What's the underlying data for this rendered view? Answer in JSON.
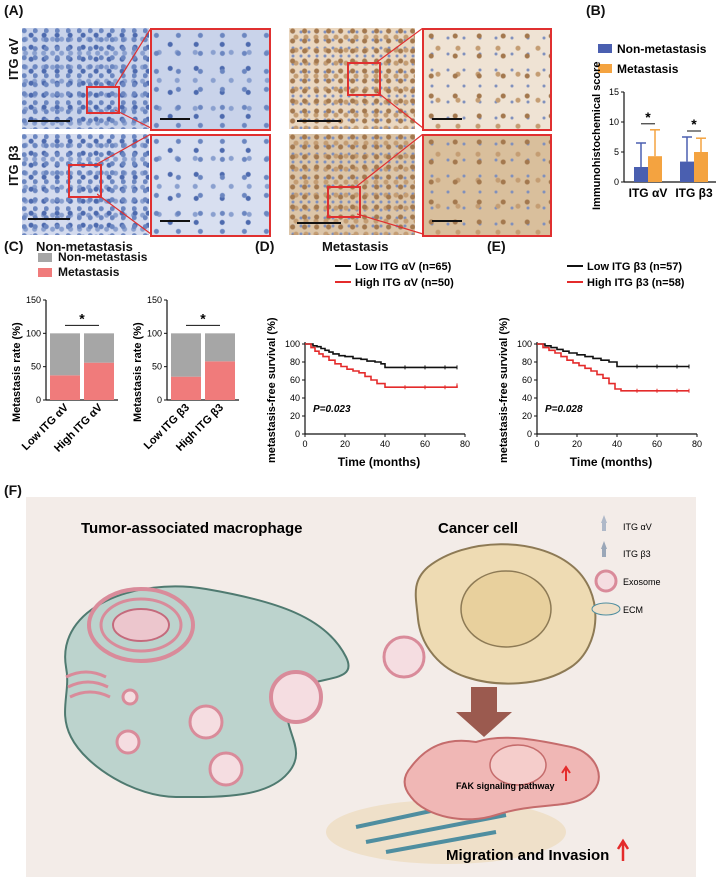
{
  "panels": {
    "a": "(A)",
    "b": "(B)",
    "c": "(C)",
    "d": "(D)",
    "e": "(E)",
    "f": "(F)"
  },
  "ihc": {
    "row_labels": [
      "ITG αV",
      "ITG β3"
    ],
    "col_labels": [
      "Non-metastasis",
      "Metastasis"
    ]
  },
  "colors": {
    "blue": "#4a5fb0",
    "orange": "#f4a340",
    "grey": "#a6a6a6",
    "pink": "#f07b7b",
    "black": "#111111",
    "red": "#e42b2b"
  },
  "chart_data": [
    {
      "id": "B",
      "type": "bar",
      "ylabel": "Immunohistochemical score",
      "categories": [
        "ITG αV",
        "ITG β3"
      ],
      "series": [
        {
          "name": "Non-metastasis",
          "values": [
            2.5,
            3.4
          ],
          "errors": [
            4.0,
            4.1
          ]
        },
        {
          "name": "Metastasis",
          "values": [
            4.3,
            5.0
          ],
          "errors": [
            4.4,
            2.3
          ]
        }
      ],
      "ylim": [
        0,
        15
      ],
      "yticks": [
        "0",
        "5",
        "10",
        "15"
      ],
      "significance": [
        "*",
        "*"
      ]
    },
    {
      "id": "C1",
      "type": "bar",
      "stacked": true,
      "ylabel": "Metastasis rate (%)",
      "legend": [
        "Non-metastasis",
        "Metastasis"
      ],
      "categories": [
        "Low ITG αV",
        "High ITG αV"
      ],
      "series": [
        {
          "name": "Metastasis",
          "values": [
            37,
            56
          ]
        },
        {
          "name": "Non-metastasis",
          "values": [
            63,
            44
          ]
        }
      ],
      "ylim": [
        0,
        150
      ],
      "yticks": [
        "0",
        "50",
        "100",
        "150"
      ],
      "significance": "*"
    },
    {
      "id": "C2",
      "type": "bar",
      "stacked": true,
      "ylabel": "Metastasis rate (%)",
      "categories": [
        "Low ITG β3",
        "High ITG β3"
      ],
      "series": [
        {
          "name": "Metastasis",
          "values": [
            35,
            58
          ]
        },
        {
          "name": "Non-metastasis",
          "values": [
            65,
            42
          ]
        }
      ],
      "ylim": [
        0,
        150
      ],
      "yticks": [
        "0",
        "50",
        "100",
        "150"
      ],
      "significance": "*"
    },
    {
      "id": "D",
      "type": "line",
      "xlabel": "Time (months)",
      "ylabel": "metastasis-free survival (%)",
      "xlim": [
        0,
        80
      ],
      "ylim": [
        0,
        100
      ],
      "xticks": [
        "0",
        "20",
        "40",
        "60",
        "80"
      ],
      "yticks": [
        "0",
        "20",
        "40",
        "60",
        "80",
        "100"
      ],
      "pvalue": "P=0.023",
      "series": [
        {
          "name": "Low   ITG αV (n=65)",
          "color": "#111111",
          "x": [
            0,
            4,
            6,
            8,
            10,
            12,
            14,
            17,
            20,
            24,
            28,
            31,
            35,
            38,
            40,
            50,
            60,
            70,
            76
          ],
          "y": [
            100,
            98,
            97,
            95,
            93,
            91,
            89,
            87,
            86,
            84,
            83,
            81,
            80,
            78,
            74,
            74,
            74,
            74,
            74
          ]
        },
        {
          "name": "High  ITG αV (n=50)",
          "color": "#e42b2b",
          "x": [
            0,
            3,
            5,
            7,
            9,
            12,
            15,
            18,
            21,
            24,
            27,
            30,
            33,
            36,
            40,
            50,
            60,
            70,
            76
          ],
          "y": [
            100,
            96,
            92,
            89,
            86,
            82,
            78,
            75,
            72,
            70,
            68,
            64,
            60,
            56,
            52,
            52,
            52,
            52,
            54
          ]
        }
      ]
    },
    {
      "id": "E",
      "type": "line",
      "xlabel": "Time (months)",
      "ylabel": "metastasis-free survival (%)",
      "xlim": [
        0,
        80
      ],
      "ylim": [
        0,
        100
      ],
      "xticks": [
        "0",
        "20",
        "40",
        "60",
        "80"
      ],
      "yticks": [
        "0",
        "20",
        "40",
        "60",
        "80",
        "100"
      ],
      "pvalue": "P=0.028",
      "series": [
        {
          "name": "Low   ITG β3 (n=57)",
          "color": "#111111",
          "x": [
            0,
            4,
            7,
            10,
            13,
            16,
            20,
            24,
            28,
            32,
            36,
            40,
            50,
            60,
            70,
            76
          ],
          "y": [
            100,
            98,
            96,
            94,
            92,
            90,
            88,
            86,
            84,
            82,
            80,
            75,
            75,
            75,
            75,
            75
          ]
        },
        {
          "name": "High  ITG β3 (n=58)",
          "color": "#e42b2b",
          "x": [
            0,
            3,
            6,
            9,
            12,
            15,
            18,
            21,
            24,
            27,
            30,
            33,
            36,
            39,
            42,
            50,
            60,
            70,
            76
          ],
          "y": [
            100,
            96,
            93,
            90,
            86,
            82,
            79,
            76,
            73,
            70,
            66,
            62,
            56,
            50,
            48,
            48,
            48,
            48,
            48
          ]
        }
      ]
    }
  ],
  "diagram": {
    "macrophage_label": "Tumor-associated macrophage",
    "cancer_label": "Cancer cell",
    "legend": [
      "ITG αV",
      "ITG β3",
      "Exosome",
      "ECM"
    ],
    "fak_label": "FAK signaling pathway",
    "migration_label": "Migration and Invasion"
  }
}
